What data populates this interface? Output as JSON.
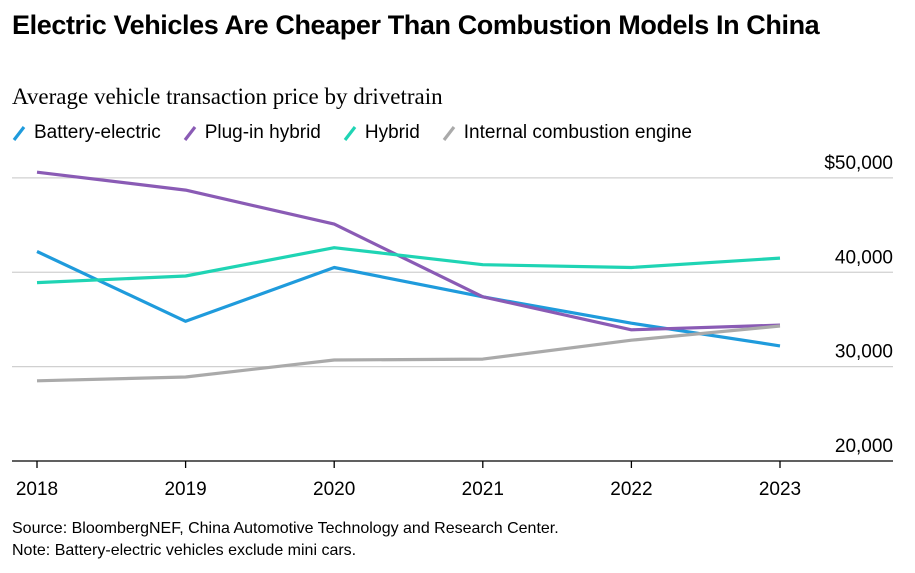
{
  "chart_data": {
    "type": "line",
    "title": "Electric Vehicles Are Cheaper Than Combustion Models In China",
    "subtitle": "Average vehicle transaction price by drivetrain",
    "categories": [
      "2018",
      "2019",
      "2020",
      "2021",
      "2022",
      "2023"
    ],
    "series": [
      {
        "name": "Battery-electric",
        "color": "#1f9bdc",
        "values": [
          42200,
          34800,
          40500,
          37400,
          34600,
          32200
        ]
      },
      {
        "name": "Plug-in hybrid",
        "color": "#8a5bb5",
        "values": [
          50600,
          48700,
          45100,
          37400,
          33900,
          34400
        ]
      },
      {
        "name": "Hybrid",
        "color": "#1fd4b4",
        "values": [
          38900,
          39600,
          42600,
          40800,
          40500,
          41500
        ]
      },
      {
        "name": "Internal combustion engine",
        "color": "#aaaaaa",
        "values": [
          28500,
          28900,
          30700,
          30800,
          32800,
          34300
        ]
      }
    ],
    "ylim": [
      20000,
      52000
    ],
    "yticks": [
      {
        "value": 20000,
        "label": "20,000"
      },
      {
        "value": 30000,
        "label": "30,000"
      },
      {
        "value": 40000,
        "label": "40,000"
      },
      {
        "value": 50000,
        "label": "$50,000"
      }
    ],
    "grid": true,
    "source": "Source: BloombergNEF, China Automotive Technology and Research Center.",
    "note": "Note: Battery-electric vehicles exclude mini cars."
  }
}
